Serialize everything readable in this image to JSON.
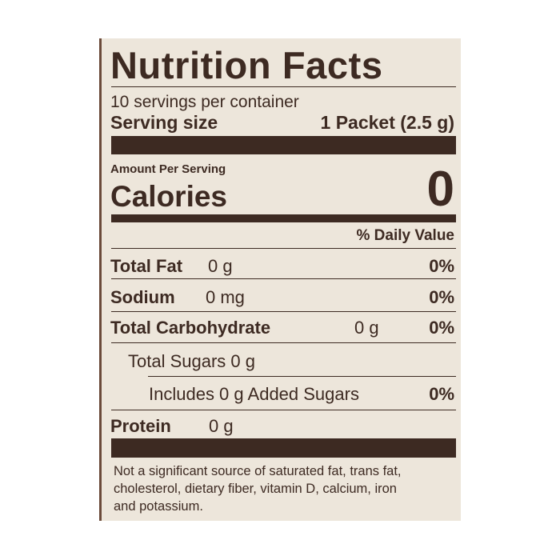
{
  "label": {
    "title": "Nutrition Facts",
    "servings_per_container": "10 servings per container",
    "serving_size_label": "Serving size",
    "serving_size_value": "1 Packet (2.5 g)",
    "amount_per_serving": "Amount Per Serving",
    "calories_label": "Calories",
    "calories_value": "0",
    "daily_value_header": "% Daily Value",
    "rows": [
      {
        "name": "Total Fat",
        "amount": "0 g",
        "dv": "0%"
      },
      {
        "name": "Sodium",
        "amount": "0 mg",
        "dv": "0%"
      },
      {
        "name": "Total Carbohydrate",
        "amount": "0 g",
        "dv": "0%"
      },
      {
        "name": "Total Sugars 0 g"
      },
      {
        "name": "Includes 0 g Added Sugars",
        "dv": "0%"
      },
      {
        "name": "Protein",
        "amount": "0 g"
      }
    ],
    "footnote": [
      "Not a significant source of saturated fat, trans fat,",
      "cholesterol, dietary fiber, vitamin D, calcium, iron",
      "and potassium."
    ]
  },
  "colors": {
    "ink": "#3d2a22",
    "paper": "#ede6db"
  }
}
